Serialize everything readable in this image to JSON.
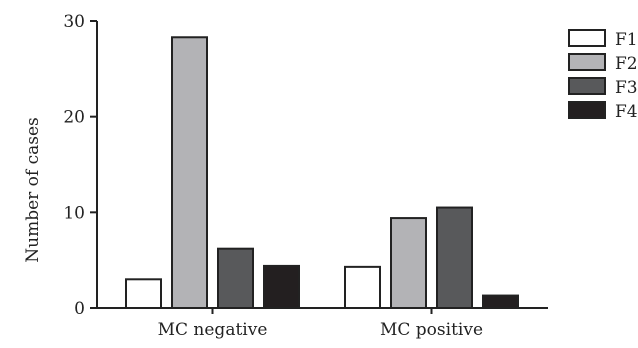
{
  "chart_data": {
    "type": "bar",
    "title": "",
    "xlabel": "",
    "ylabel": "Number of cases",
    "ylim": [
      0,
      30
    ],
    "yticks": [
      0,
      10,
      20,
      30
    ],
    "grid": false,
    "legend_position": "top-right",
    "categories": [
      "MC negative",
      "MC positive"
    ],
    "series": [
      {
        "name": "F1",
        "color": "#ffffff",
        "values": [
          3.0,
          4.3
        ]
      },
      {
        "name": "F2",
        "color": "#b3b3b6",
        "values": [
          28.3,
          9.4
        ]
      },
      {
        "name": "F3",
        "color": "#58595b",
        "values": [
          6.2,
          10.5
        ]
      },
      {
        "name": "F4",
        "color": "#231f20",
        "values": [
          4.4,
          1.3
        ]
      }
    ]
  }
}
